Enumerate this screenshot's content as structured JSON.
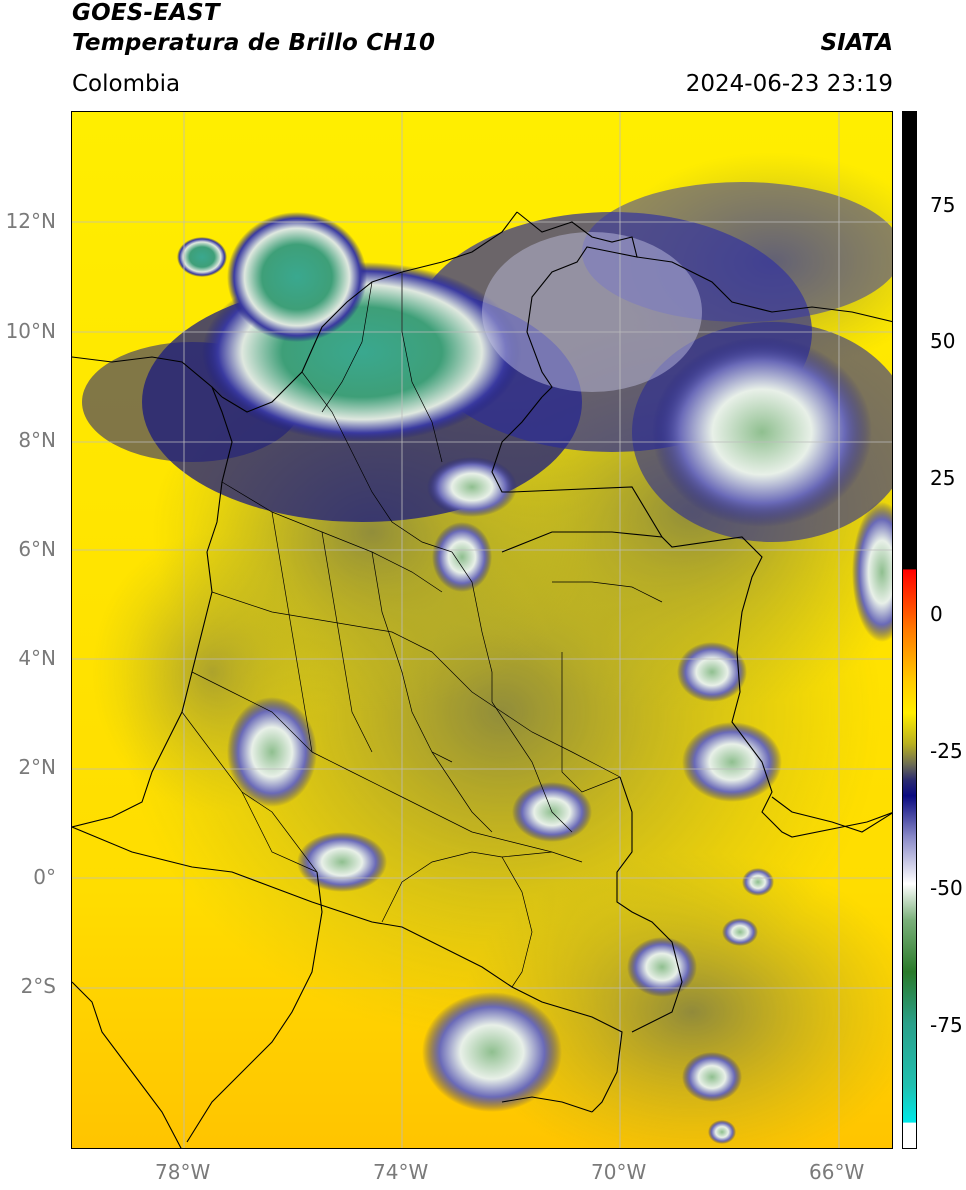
{
  "header": {
    "satellite": "GOES-EAST",
    "product": "Temperatura de Brillo CH10",
    "organization": "SIATA",
    "region": "Colombia",
    "timestamp": "2024-06-23 23:19"
  },
  "map": {
    "lat_ticks": [
      "12°N",
      "10°N",
      "8°N",
      "6°N",
      "4°N",
      "2°N",
      "0°",
      "2°S"
    ],
    "lon_ticks": [
      "78°W",
      "74°W",
      "70°W",
      "66°W"
    ]
  },
  "colorbar": {
    "ticks": [
      "75",
      "50",
      "25",
      "0",
      "-25",
      "-50",
      "-75"
    ],
    "colors": {
      "black": "#000000",
      "red": "#ff1a00",
      "orange": "#ff9a00",
      "yellow": "#ffee00",
      "olive": "#8a8a3a",
      "gray": "#666a55",
      "navy": "#0a0a80",
      "white": "#ffffff",
      "green": "#2a8a2a",
      "teal": "#2aa08a",
      "cyan": "#00e0e0"
    }
  }
}
